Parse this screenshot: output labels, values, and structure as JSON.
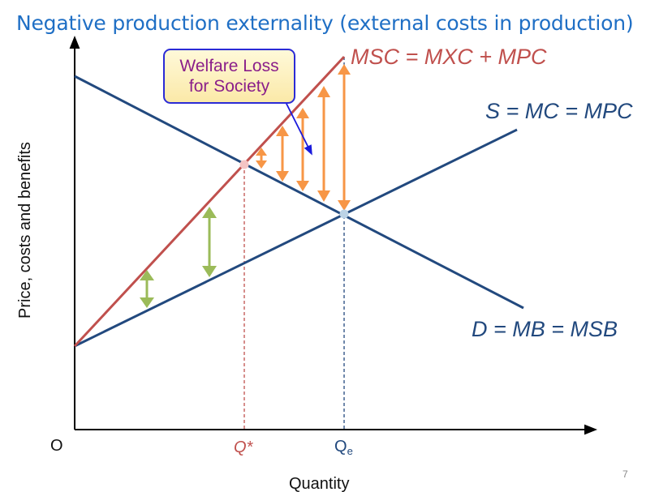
{
  "title": "Negative production externality (external costs in production)",
  "curves": {
    "msc": "MSC = MXC + MPC",
    "supply": "S = MC = MPC",
    "demand": "D = MB = MSB"
  },
  "welfare_box": {
    "line1": "Welfare Loss",
    "line2": "for Society"
  },
  "axes": {
    "origin": "O",
    "x_label": "Quantity",
    "y_label": "Price, costs and benefits"
  },
  "markers": {
    "q_star": "Q*",
    "q_e_base": "Q",
    "q_e_sub": "e"
  },
  "page_number": "7",
  "colors": {
    "title": "#1f6fc5",
    "supply_demand": "#22497e",
    "msc": "#c0504d",
    "welfare_arrows": "#f79646",
    "external_cost_arrows": "#9bbb59",
    "box_border": "#2b2bd6",
    "box_text": "#8a1f8a"
  }
}
